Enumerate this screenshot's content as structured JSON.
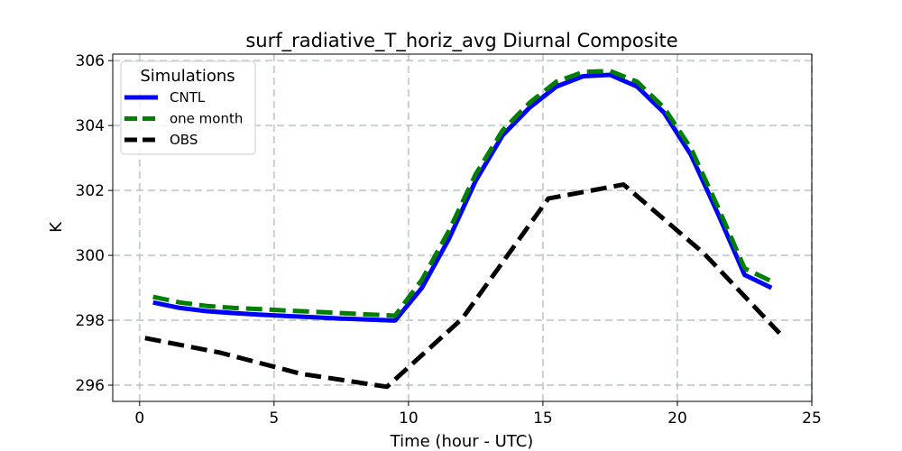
{
  "chart_data": {
    "type": "line",
    "title": "surf_radiative_T_horiz_avg Diurnal Composite",
    "xlabel": "Time (hour - UTC)",
    "ylabel": "K",
    "xlim": [
      -1,
      25
    ],
    "ylim": [
      295.5,
      306.2
    ],
    "xticks": [
      0,
      5,
      10,
      15,
      20,
      25
    ],
    "yticks": [
      296,
      298,
      300,
      302,
      304,
      306
    ],
    "grid": true,
    "legend": {
      "title": "Simulations",
      "position": "upper-left"
    },
    "series": [
      {
        "name": "CNTL",
        "color": "#0000ff",
        "style": "solid",
        "x": [
          0.5,
          1.5,
          2.5,
          3.5,
          4.5,
          5.5,
          6.5,
          7.5,
          8.5,
          9.5,
          10.5,
          11.5,
          12.5,
          13.5,
          14.5,
          15.5,
          16.5,
          17.5,
          18.5,
          19.5,
          20.5,
          21.5,
          22.5,
          23.5
        ],
        "values": [
          298.55,
          298.38,
          298.28,
          298.22,
          298.17,
          298.13,
          298.09,
          298.05,
          298.02,
          297.99,
          299.0,
          300.5,
          302.3,
          303.7,
          304.55,
          305.2,
          305.52,
          305.56,
          305.2,
          304.4,
          303.1,
          301.3,
          299.4,
          299.0
        ]
      },
      {
        "name": "one month",
        "color": "#008000",
        "style": "dashed",
        "x": [
          0.5,
          1.5,
          2.5,
          3.5,
          4.5,
          5.5,
          6.5,
          7.5,
          8.5,
          9.5,
          10.5,
          11.5,
          12.5,
          13.5,
          14.5,
          15.5,
          16.5,
          17.5,
          18.5,
          19.5,
          20.5,
          21.5,
          22.5,
          23.5
        ],
        "values": [
          298.72,
          298.55,
          298.44,
          298.38,
          298.34,
          298.3,
          298.26,
          298.22,
          298.18,
          298.14,
          299.25,
          300.75,
          302.5,
          303.85,
          304.7,
          305.35,
          305.65,
          305.68,
          305.35,
          304.55,
          303.3,
          301.5,
          299.6,
          299.2
        ]
      },
      {
        "name": "OBS",
        "color": "#000000",
        "style": "dashed",
        "x": [
          0.2,
          3.0,
          6.0,
          9.2,
          12.0,
          15.2,
          18.0,
          21.0,
          23.8
        ],
        "values": [
          297.45,
          297.0,
          296.35,
          295.95,
          298.05,
          301.75,
          302.18,
          300.05,
          297.6
        ]
      }
    ]
  }
}
